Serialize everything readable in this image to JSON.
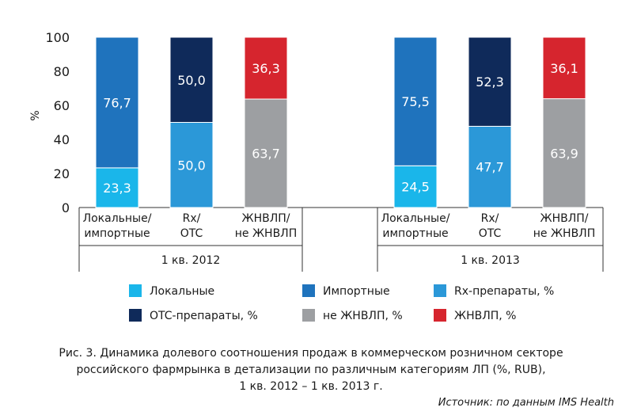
{
  "chart_data": {
    "type": "bar",
    "stacked": true,
    "ylabel": "%",
    "ylim": [
      0,
      100
    ],
    "yticks": [
      0,
      20,
      40,
      60,
      80,
      100
    ],
    "groups": [
      {
        "label": "1 кв. 2012",
        "bars": [
          {
            "category": "Локальные/ импортные",
            "label_lines": [
              "Локальные/",
              "импортные"
            ],
            "segments": [
              {
                "series": "Локальные",
                "value": 23.3,
                "label": "23,3"
              },
              {
                "series": "Импортные",
                "value": 76.7,
                "label": "76,7"
              }
            ]
          },
          {
            "category": "Rx/ OTC",
            "label_lines": [
              "Rx/",
              "OTC"
            ],
            "segments": [
              {
                "series": "Rx-препараты, %",
                "value": 50.0,
                "label": "50,0"
              },
              {
                "series": "OTC-препараты, %",
                "value": 50.0,
                "label": "50,0"
              }
            ]
          },
          {
            "category": "ЖНВЛП/ не ЖНВЛП",
            "label_lines": [
              "ЖНВЛП/",
              "не ЖНВЛП"
            ],
            "segments": [
              {
                "series": "не ЖНВЛП, %",
                "value": 63.7,
                "label": "63,7"
              },
              {
                "series": "ЖНВЛП, %",
                "value": 36.3,
                "label": "36,3"
              }
            ]
          }
        ]
      },
      {
        "label": "1 кв. 2013",
        "bars": [
          {
            "category": "Локальные/ импортные",
            "label_lines": [
              "Локальные/",
              "импортные"
            ],
            "segments": [
              {
                "series": "Локальные",
                "value": 24.5,
                "label": "24,5"
              },
              {
                "series": "Импортные",
                "value": 75.5,
                "label": "75,5"
              }
            ]
          },
          {
            "category": "Rx/ OTC",
            "label_lines": [
              "Rx/",
              "OTC"
            ],
            "segments": [
              {
                "series": "Rx-препараты, %",
                "value": 47.7,
                "label": "47,7"
              },
              {
                "series": "OTC-препараты, %",
                "value": 52.3,
                "label": "52,3"
              }
            ]
          },
          {
            "category": "ЖНВЛП/ не ЖНВЛП",
            "label_lines": [
              "ЖНВЛП/",
              "не ЖНВЛП"
            ],
            "segments": [
              {
                "series": "не ЖНВЛП, %",
                "value": 63.9,
                "label": "63,9"
              },
              {
                "series": "ЖНВЛП, %",
                "value": 36.1,
                "label": "36,1"
              }
            ]
          }
        ]
      }
    ],
    "legend": [
      {
        "name": "Локальные",
        "color": "#1ab6ea"
      },
      {
        "name": "Импортные",
        "color": "#1f73bd"
      },
      {
        "name": "Rx-препараты, %",
        "color": "#2b98d8"
      },
      {
        "name": "OTC-препараты, %",
        "color": "#0f2a5a"
      },
      {
        "name": "не ЖНВЛП, %",
        "color": "#9d9fa2"
      },
      {
        "name": "ЖНВЛП, %",
        "color": "#d6252e"
      }
    ]
  },
  "caption": {
    "line1": "Рис. 3. Динамика долевого соотношения продаж в коммерческом розничном секторе",
    "line2": "российского фармрынка в детализации по различным категориям ЛП (%, RUB),",
    "line3": "1 кв. 2012 – 1 кв. 2013 г."
  },
  "source": "Источник: по данным IMS Health"
}
